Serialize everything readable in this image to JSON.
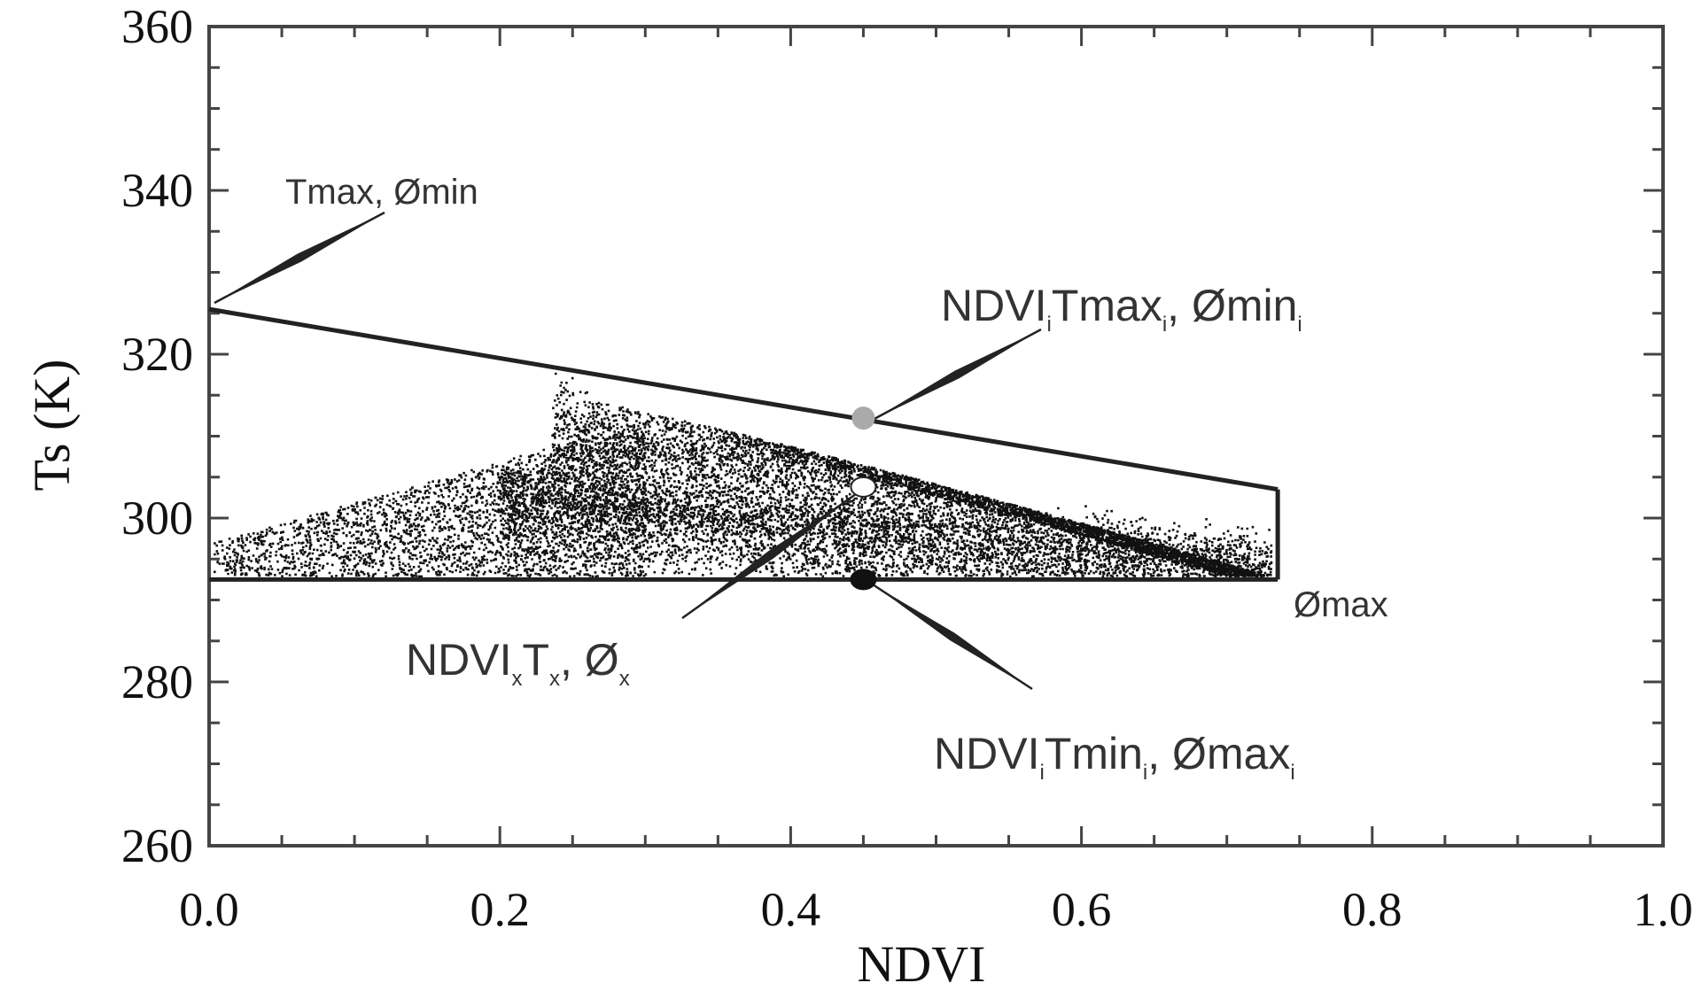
{
  "chart_data": {
    "type": "scatter",
    "title": "",
    "xlabel": "NDVI",
    "ylabel": "Ts (K)",
    "xlim": [
      0.0,
      1.0
    ],
    "ylim": [
      260,
      360
    ],
    "x_ticks": [
      "0.0",
      "0.2",
      "0.4",
      "0.6",
      "0.8",
      "1.0"
    ],
    "y_ticks": [
      "260",
      "280",
      "300",
      "320",
      "340",
      "360"
    ],
    "grid": false,
    "point_color": "#111111",
    "dry_edge": [
      [
        0.0,
        325.5
      ],
      [
        0.735,
        303.5
      ]
    ],
    "wet_edge": [
      [
        0.0,
        292.5
      ],
      [
        0.735,
        292.5
      ]
    ],
    "right_edge": [
      [
        0.735,
        292.5
      ],
      [
        0.735,
        303.5
      ]
    ],
    "points": [
      {
        "name": "dry",
        "x": 0.45,
        "y": 312.2,
        "color": "#aaaaaa"
      },
      {
        "name": "pixel",
        "x": 0.45,
        "y": 303.8,
        "color": "#ffffff"
      },
      {
        "name": "wet",
        "x": 0.45,
        "y": 292.5,
        "color": "#111111"
      }
    ],
    "annotations": [
      {
        "id": "tmax_phimin",
        "text": "Tmax, Ømin"
      },
      {
        "id": "phimax",
        "text": "Ømax"
      },
      {
        "id": "dry_i",
        "parts": [
          "NDVI",
          "i",
          "Tmax",
          "i",
          ", Ømin",
          "i"
        ]
      },
      {
        "id": "pixel_x",
        "parts": [
          "NDVI",
          "x",
          "T",
          "x",
          ", Ø",
          "x"
        ]
      },
      {
        "id": "wet_i",
        "parts": [
          "NDVI",
          "i",
          "Tmin",
          "i",
          ", Ømax",
          "i"
        ]
      }
    ]
  }
}
